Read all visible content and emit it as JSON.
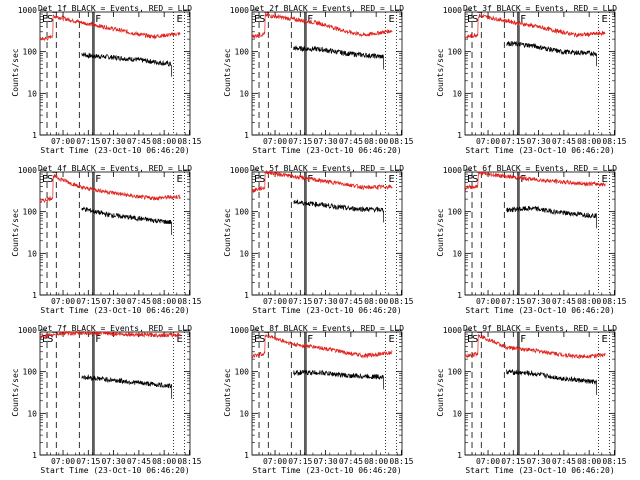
{
  "chart_data": [
    {
      "type": "line",
      "title": "Det_1f BLACK = Events, RED = LLD",
      "xlabel": "Start Time (23-Oct-10 06:46:20)",
      "ylabel": "Counts/sec",
      "ylim": [
        1,
        1000
      ],
      "yscale": "log",
      "xlim": [
        0,
        5340
      ],
      "x_ticks": [
        "07:00",
        "07:15",
        "07:30",
        "07:45",
        "08:00",
        "08:15"
      ],
      "y_ticks": [
        "1",
        "10",
        "100",
        "1000"
      ],
      "markers": [
        "E",
        "S",
        "F",
        "E"
      ],
      "series": [
        {
          "name": "BLACK = Events",
          "color": "#000000",
          "values": [
            [
              1480,
              90
            ],
            [
              1700,
              80
            ],
            [
              2400,
              75
            ],
            [
              3400,
              65
            ],
            [
              4690,
              50
            ]
          ]
        },
        {
          "name": "RED = LLD",
          "color": "#e0201a",
          "values": [
            [
              0,
              200
            ],
            [
              300,
              210
            ],
            [
              460,
              250
            ],
            [
              470,
              720
            ],
            [
              1480,
              500
            ],
            [
              2400,
              380
            ],
            [
              3400,
              270
            ],
            [
              4000,
              230
            ],
            [
              5000,
              270
            ]
          ]
        }
      ]
    },
    {
      "type": "line",
      "title": "Det_2f BLACK = Events, RED = LLD",
      "xlabel": "Start Time (23-Oct-10 06:46:20)",
      "ylabel": "Counts/sec",
      "ylim": [
        1,
        1000
      ],
      "yscale": "log",
      "xlim": [
        0,
        5340
      ],
      "x_ticks": [
        "07:00",
        "07:15",
        "07:30",
        "07:45",
        "08:00",
        "08:15"
      ],
      "y_ticks": [
        "1",
        "10",
        "100",
        "1000"
      ],
      "markers": [
        "E",
        "S",
        "F",
        "E"
      ],
      "series": [
        {
          "name": "BLACK = Events",
          "color": "#000000",
          "values": [
            [
              1480,
              120
            ],
            [
              2400,
              115
            ],
            [
              3400,
              90
            ],
            [
              4690,
              75
            ]
          ]
        },
        {
          "name": "RED = LLD",
          "color": "#e0201a",
          "values": [
            [
              0,
              230
            ],
            [
              460,
              270
            ],
            [
              470,
              760
            ],
            [
              1480,
              600
            ],
            [
              2400,
              480
            ],
            [
              3400,
              300
            ],
            [
              4000,
              250
            ],
            [
              5000,
              320
            ]
          ]
        }
      ]
    },
    {
      "type": "line",
      "title": "Det_3f BLACK = Events, RED = LLD",
      "xlabel": "Start Time (23-Oct-10 06:46:20)",
      "ylabel": "Counts/sec",
      "ylim": [
        1,
        1000
      ],
      "yscale": "log",
      "xlim": [
        0,
        5340
      ],
      "x_ticks": [
        "07:00",
        "07:15",
        "07:30",
        "07:45",
        "08:00",
        "08:15"
      ],
      "y_ticks": [
        "1",
        "10",
        "100",
        "1000"
      ],
      "markers": [
        "E",
        "S",
        "F",
        "E"
      ],
      "series": [
        {
          "name": "BLACK = Events",
          "color": "#000000",
          "values": [
            [
              1480,
              160
            ],
            [
              2400,
              140
            ],
            [
              3400,
              100
            ],
            [
              4690,
              90
            ]
          ]
        },
        {
          "name": "RED = LLD",
          "color": "#e0201a",
          "values": [
            [
              0,
              220
            ],
            [
              460,
              260
            ],
            [
              470,
              740
            ],
            [
              1480,
              550
            ],
            [
              2400,
              420
            ],
            [
              3400,
              300
            ],
            [
              4000,
              250
            ],
            [
              5000,
              280
            ]
          ]
        }
      ]
    },
    {
      "type": "line",
      "title": "Det_4f BLACK = Events, RED = LLD",
      "xlabel": "Start Time (23-Oct-10 06:46:20)",
      "ylabel": "Counts/sec",
      "ylim": [
        1,
        1000
      ],
      "yscale": "log",
      "xlim": [
        0,
        5340
      ],
      "x_ticks": [
        "07:00",
        "07:15",
        "07:30",
        "07:45",
        "08:00",
        "08:15"
      ],
      "y_ticks": [
        "1",
        "10",
        "100",
        "1000"
      ],
      "markers": [
        "E",
        "S",
        "F",
        "E"
      ],
      "series": [
        {
          "name": "BLACK = Events",
          "color": "#000000",
          "values": [
            [
              1480,
              120
            ],
            [
              2400,
              85
            ],
            [
              3400,
              70
            ],
            [
              4690,
              55
            ]
          ]
        },
        {
          "name": "RED = LLD",
          "color": "#e0201a",
          "values": [
            [
              0,
              170
            ],
            [
              460,
              220
            ],
            [
              470,
              720
            ],
            [
              1480,
              380
            ],
            [
              2400,
              300
            ],
            [
              3400,
              230
            ],
            [
              4000,
              210
            ],
            [
              5000,
              230
            ]
          ]
        }
      ]
    },
    {
      "type": "line",
      "title": "Det_5f BLACK = Events, RED = LLD",
      "xlabel": "Start Time (23-Oct-10 06:46:20)",
      "ylabel": "Counts/sec",
      "ylim": [
        1,
        1000
      ],
      "yscale": "log",
      "xlim": [
        0,
        5340
      ],
      "x_ticks": [
        "07:00",
        "07:15",
        "07:30",
        "07:45",
        "08:00",
        "08:15"
      ],
      "y_ticks": [
        "1",
        "10",
        "100",
        "1000"
      ],
      "markers": [
        "E",
        "S",
        "F",
        "E"
      ],
      "series": [
        {
          "name": "BLACK = Events",
          "color": "#000000",
          "values": [
            [
              1480,
              170
            ],
            [
              2400,
              150
            ],
            [
              3400,
              120
            ],
            [
              4690,
              110
            ]
          ]
        },
        {
          "name": "RED = LLD",
          "color": "#e0201a",
          "values": [
            [
              0,
              320
            ],
            [
              460,
              380
            ],
            [
              470,
              900
            ],
            [
              1480,
              700
            ],
            [
              2400,
              560
            ],
            [
              3400,
              450
            ],
            [
              4000,
              380
            ],
            [
              5000,
              400
            ]
          ]
        }
      ]
    },
    {
      "type": "line",
      "title": "Det_6f BLACK = Events, RED = LLD",
      "xlabel": "Start Time (23-Oct-10 06:46:20)",
      "ylabel": "Counts/sec",
      "ylim": [
        1,
        1000
      ],
      "yscale": "log",
      "xlim": [
        0,
        5340
      ],
      "x_ticks": [
        "07:00",
        "07:15",
        "07:30",
        "07:45",
        "08:00",
        "08:15"
      ],
      "y_ticks": [
        "1",
        "10",
        "100",
        "1000"
      ],
      "markers": [
        "E",
        "S",
        "F",
        "E"
      ],
      "series": [
        {
          "name": "BLACK = Events",
          "color": "#000000",
          "values": [
            [
              1480,
              110
            ],
            [
              2400,
              120
            ],
            [
              3400,
              95
            ],
            [
              4690,
              80
            ]
          ]
        },
        {
          "name": "RED = LLD",
          "color": "#e0201a",
          "values": [
            [
              0,
              380
            ],
            [
              460,
              400
            ],
            [
              470,
              850
            ],
            [
              1480,
              700
            ],
            [
              2400,
              600
            ],
            [
              3400,
              520
            ],
            [
              4000,
              480
            ],
            [
              5000,
              450
            ]
          ]
        }
      ]
    },
    {
      "type": "line",
      "title": "Det_7f BLACK = Events, RED = LLD",
      "xlabel": "Start Time (23-Oct-10 06:46:20)",
      "ylabel": "Counts/sec",
      "ylim": [
        1,
        1000
      ],
      "yscale": "log",
      "xlim": [
        0,
        5340
      ],
      "x_ticks": [
        "07:00",
        "07:15",
        "07:30",
        "07:45",
        "08:00",
        "08:15"
      ],
      "y_ticks": [
        "1",
        "10",
        "100",
        "1000"
      ],
      "markers": [
        "E",
        "S",
        "F",
        "E"
      ],
      "series": [
        {
          "name": "BLACK = Events",
          "color": "#000000",
          "values": [
            [
              1480,
              75
            ],
            [
              2400,
              65
            ],
            [
              3400,
              55
            ],
            [
              4690,
              45
            ]
          ]
        },
        {
          "name": "RED = LLD",
          "color": "#e0201a",
          "values": [
            [
              0,
              700
            ],
            [
              460,
              740
            ],
            [
              470,
              800
            ],
            [
              1480,
              850
            ],
            [
              2400,
              820
            ],
            [
              3400,
              780
            ],
            [
              4000,
              760
            ],
            [
              5000,
              760
            ]
          ]
        }
      ]
    },
    {
      "type": "line",
      "title": "Det_8f BLACK = Events, RED = LLD",
      "xlabel": "Start Time (23-Oct-10 06:46:20)",
      "ylabel": "Counts/sec",
      "ylim": [
        1,
        1000
      ],
      "yscale": "log",
      "xlim": [
        0,
        5340
      ],
      "x_ticks": [
        "07:00",
        "07:15",
        "07:30",
        "07:45",
        "08:00",
        "08:15"
      ],
      "y_ticks": [
        "1",
        "10",
        "100",
        "1000"
      ],
      "markers": [
        "E",
        "S",
        "F",
        "E"
      ],
      "series": [
        {
          "name": "BLACK = Events",
          "color": "#000000",
          "values": [
            [
              1480,
              95
            ],
            [
              2400,
              95
            ],
            [
              3400,
              80
            ],
            [
              4690,
              75
            ]
          ]
        },
        {
          "name": "RED = LLD",
          "color": "#e0201a",
          "values": [
            [
              0,
              230
            ],
            [
              460,
              280
            ],
            [
              470,
              760
            ],
            [
              1480,
              450
            ],
            [
              2400,
              380
            ],
            [
              3400,
              280
            ],
            [
              4000,
              240
            ],
            [
              5000,
              290
            ]
          ]
        }
      ]
    },
    {
      "type": "line",
      "title": "Det_9f BLACK = Events, RED = LLD",
      "xlabel": "Start Time (23-Oct-10 06:46:20)",
      "ylabel": "Counts/sec",
      "ylim": [
        1,
        1000
      ],
      "yscale": "log",
      "xlim": [
        0,
        5340
      ],
      "x_ticks": [
        "07:00",
        "07:15",
        "07:30",
        "07:45",
        "08:00",
        "08:15"
      ],
      "y_ticks": [
        "1",
        "10",
        "100",
        "1000"
      ],
      "markers": [
        "E",
        "S",
        "F",
        "E"
      ],
      "series": [
        {
          "name": "BLACK = Events",
          "color": "#000000",
          "values": [
            [
              1480,
              100
            ],
            [
              2400,
              90
            ],
            [
              3400,
              70
            ],
            [
              4690,
              55
            ]
          ]
        },
        {
          "name": "RED = LLD",
          "color": "#e0201a",
          "values": [
            [
              0,
              230
            ],
            [
              460,
              270
            ],
            [
              470,
              760
            ],
            [
              1480,
              380
            ],
            [
              2400,
              330
            ],
            [
              3400,
              260
            ],
            [
              4000,
              230
            ],
            [
              5000,
              250
            ]
          ]
        }
      ]
    }
  ]
}
